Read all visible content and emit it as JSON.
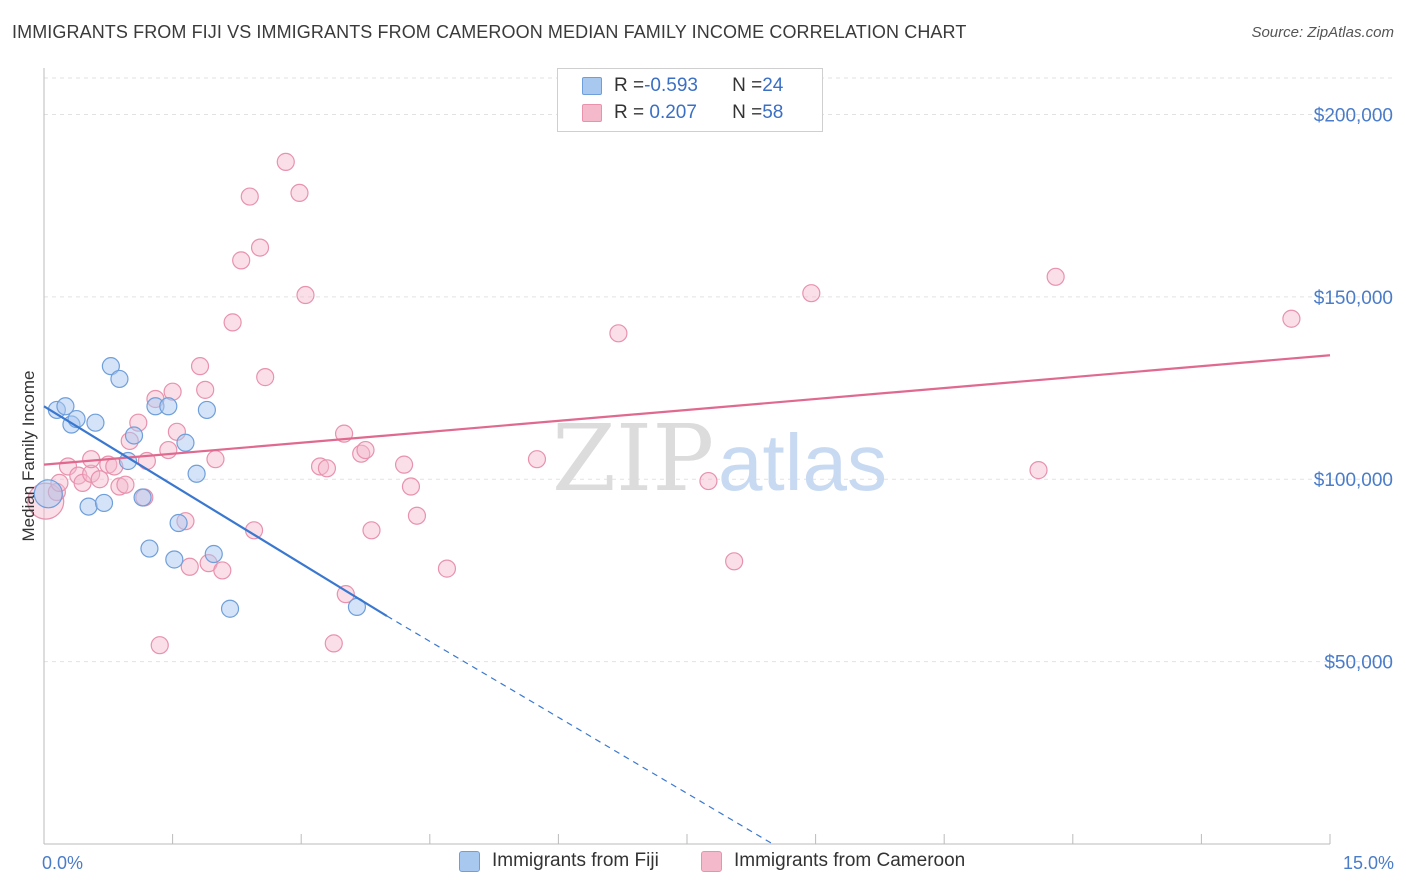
{
  "title": "IMMIGRANTS FROM FIJI VS IMMIGRANTS FROM CAMEROON MEDIAN FAMILY INCOME CORRELATION CHART",
  "source": "Source: ZipAtlas.com",
  "watermark": {
    "zip": "ZIP",
    "atlas": "atlas"
  },
  "legend": {
    "rows": [
      {
        "r_label": "R = ",
        "r_value": "-0.593",
        "n_label": "N = ",
        "n_value": "24",
        "color": "#a9c8f0"
      },
      {
        "r_label": "R = ",
        "r_value": " 0.207",
        "n_label": "N = ",
        "n_value": "58",
        "color": "#f5b9cc"
      }
    ]
  },
  "bottom_legend": [
    "Immigrants from Fiji",
    "Immigrants from Cameroon"
  ],
  "colors": {
    "fiji_fill": "#a9c8f0",
    "fiji_stroke": "#6f9fdb",
    "fiji_line": "#3a78d0",
    "cameroon_fill": "#f5b9cc",
    "cameroon_stroke": "#e892ad",
    "cameroon_line": "#e0698f"
  },
  "chart_data": {
    "type": "scatter",
    "title": "IMMIGRANTS FROM FIJI VS IMMIGRANTS FROM CAMEROON MEDIAN FAMILY INCOME CORRELATION CHART",
    "xlabel": "",
    "ylabel": "Median Family Income",
    "xlim": [
      0,
      15
    ],
    "ylim": [
      0,
      210000
    ],
    "x_tick_labels": [
      "0.0%",
      "15.0%"
    ],
    "y_ticks": [
      50000,
      100000,
      150000,
      200000
    ],
    "y_tick_labels": [
      "$50,000",
      "$100,000",
      "$150,000",
      "$200,000"
    ],
    "grid": true,
    "series": [
      {
        "name": "Immigrants from Fiji",
        "points": [
          [
            0.05,
            96000
          ],
          [
            0.15,
            119000
          ],
          [
            0.25,
            120000
          ],
          [
            0.32,
            115000
          ],
          [
            0.38,
            116500
          ],
          [
            0.6,
            115500
          ],
          [
            0.52,
            92500
          ],
          [
            0.7,
            93500
          ],
          [
            0.78,
            131000
          ],
          [
            0.88,
            127500
          ],
          [
            0.98,
            105000
          ],
          [
            1.05,
            112000
          ],
          [
            1.15,
            95000
          ],
          [
            1.23,
            81000
          ],
          [
            1.3,
            120000
          ],
          [
            1.45,
            120000
          ],
          [
            1.52,
            78000
          ],
          [
            1.57,
            88000
          ],
          [
            1.65,
            110000
          ],
          [
            1.78,
            101500
          ],
          [
            1.9,
            119000
          ],
          [
            1.98,
            79500
          ],
          [
            2.17,
            64500
          ],
          [
            3.65,
            65000
          ]
        ],
        "trend": {
          "x": [
            0.0,
            4.0
          ],
          "y": [
            120000,
            62500
          ],
          "dashed_to": [
            8.5,
            0
          ]
        }
      },
      {
        "name": "Immigrants from Cameroon",
        "points": [
          [
            0.02,
            94000
          ],
          [
            0.15,
            96500
          ],
          [
            0.18,
            99000
          ],
          [
            0.28,
            103500
          ],
          [
            0.4,
            101000
          ],
          [
            0.45,
            99000
          ],
          [
            0.55,
            101500
          ],
          [
            0.55,
            105500
          ],
          [
            0.65,
            100000
          ],
          [
            0.75,
            104000
          ],
          [
            0.82,
            103500
          ],
          [
            0.88,
            98000
          ],
          [
            0.95,
            98500
          ],
          [
            1.0,
            110500
          ],
          [
            1.1,
            115500
          ],
          [
            1.17,
            95000
          ],
          [
            1.2,
            105000
          ],
          [
            1.3,
            122000
          ],
          [
            1.35,
            54500
          ],
          [
            1.45,
            108000
          ],
          [
            1.5,
            124000
          ],
          [
            1.55,
            113000
          ],
          [
            1.65,
            88500
          ],
          [
            1.7,
            76000
          ],
          [
            1.82,
            131000
          ],
          [
            1.88,
            124500
          ],
          [
            1.92,
            77000
          ],
          [
            2.0,
            105500
          ],
          [
            2.08,
            75000
          ],
          [
            2.2,
            143000
          ],
          [
            2.3,
            160000
          ],
          [
            2.4,
            177500
          ],
          [
            2.45,
            86000
          ],
          [
            2.52,
            163500
          ],
          [
            2.58,
            128000
          ],
          [
            2.82,
            187000
          ],
          [
            2.98,
            178500
          ],
          [
            3.05,
            150500
          ],
          [
            3.22,
            103500
          ],
          [
            3.3,
            103000
          ],
          [
            3.38,
            55000
          ],
          [
            3.5,
            112500
          ],
          [
            3.52,
            68500
          ],
          [
            3.7,
            107000
          ],
          [
            3.75,
            108000
          ],
          [
            3.82,
            86000
          ],
          [
            4.2,
            104000
          ],
          [
            4.28,
            98000
          ],
          [
            4.35,
            90000
          ],
          [
            4.7,
            75500
          ],
          [
            5.75,
            105500
          ],
          [
            6.7,
            140000
          ],
          [
            7.75,
            99500
          ],
          [
            8.05,
            77500
          ],
          [
            8.95,
            151000
          ],
          [
            11.6,
            102500
          ],
          [
            11.8,
            155500
          ],
          [
            14.55,
            144000
          ]
        ],
        "trend": {
          "x": [
            0.0,
            15.0
          ],
          "y": [
            104000,
            134000
          ]
        }
      }
    ]
  }
}
